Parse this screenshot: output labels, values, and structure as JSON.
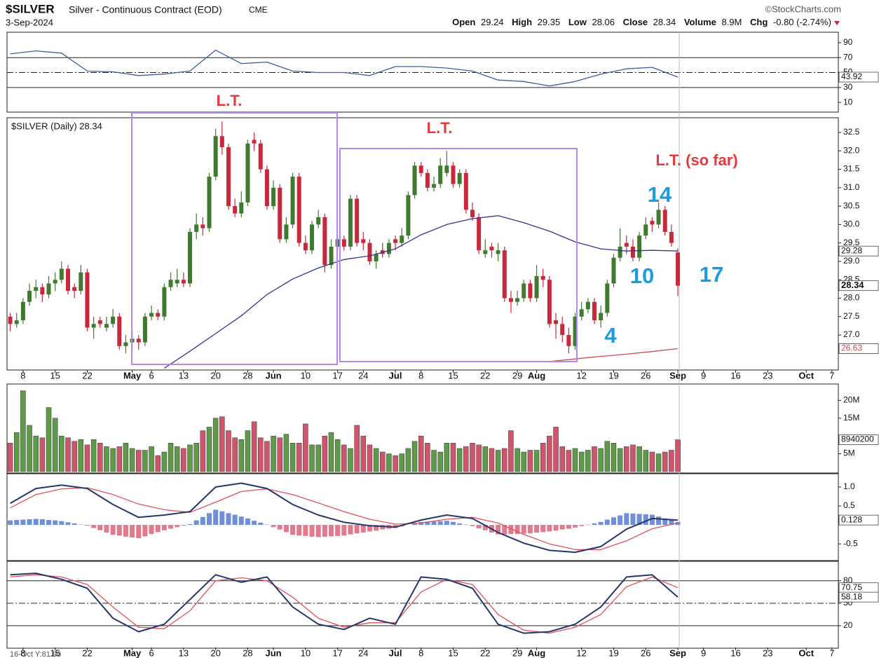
{
  "chart_data": {
    "type": "candlestick",
    "symbol": "$SILVER",
    "title": "Silver - Continuous Contract (EOD)",
    "exchange": "CME",
    "source": "©StockCharts.com",
    "date": "3-Sep-2024",
    "quote": {
      "open_label": "Open",
      "open": 29.24,
      "high_label": "High",
      "high": 29.35,
      "low_label": "Low",
      "low": 28.06,
      "close_label": "Close",
      "close": 28.34,
      "volume_label": "Volume",
      "volume": "8.9M",
      "change_label": "Chg",
      "change": "-0.80 (-2.74%)"
    },
    "legend": "$SILVER (Daily) 28.34",
    "cursor_readout": "16-Oct Y:81.90",
    "xlim": [
      -0.5,
      129
    ],
    "xticks": [
      {
        "value": 2,
        "label": "8"
      },
      {
        "value": 7,
        "label": "15"
      },
      {
        "value": 12,
        "label": "22"
      },
      {
        "value": 19,
        "label": "May"
      },
      {
        "value": 22,
        "label": "6"
      },
      {
        "value": 27,
        "label": "13"
      },
      {
        "value": 32,
        "label": "20"
      },
      {
        "value": 37,
        "label": "28"
      },
      {
        "value": 41,
        "label": "Jun"
      },
      {
        "value": 46,
        "label": "10"
      },
      {
        "value": 51,
        "label": "17"
      },
      {
        "value": 55,
        "label": "24"
      },
      {
        "value": 60,
        "label": "Jul"
      },
      {
        "value": 64,
        "label": "8"
      },
      {
        "value": 69,
        "label": "15"
      },
      {
        "value": 74,
        "label": "22"
      },
      {
        "value": 79,
        "label": "29"
      },
      {
        "value": 82,
        "label": "Aug"
      },
      {
        "value": 89,
        "label": "12"
      },
      {
        "value": 94,
        "label": "19"
      },
      {
        "value": 99,
        "label": "26"
      },
      {
        "value": 104,
        "label": "Sep"
      },
      {
        "value": 108,
        "label": "9"
      },
      {
        "value": 113,
        "label": "16"
      },
      {
        "value": 118,
        "label": "23"
      },
      {
        "value": 124,
        "label": "Oct"
      },
      {
        "value": 128,
        "label": "7"
      }
    ],
    "up_color": "#3f7a2e",
    "down_color": "#c8283c",
    "ohlc": [
      [
        27.5,
        27.6,
        27.1,
        27.3
      ],
      [
        27.3,
        27.6,
        27.2,
        27.4
      ],
      [
        27.4,
        28.0,
        27.3,
        27.9
      ],
      [
        27.9,
        28.4,
        27.8,
        28.2
      ],
      [
        28.2,
        28.5,
        28.0,
        28.3
      ],
      [
        28.3,
        28.4,
        27.9,
        28.1
      ],
      [
        28.1,
        28.6,
        28.0,
        28.4
      ],
      [
        28.4,
        28.7,
        28.2,
        28.5
      ],
      [
        28.5,
        29.0,
        28.4,
        28.8
      ],
      [
        28.8,
        28.9,
        28.1,
        28.2
      ],
      [
        28.3,
        28.4,
        28.0,
        28.2
      ],
      [
        28.2,
        28.9,
        28.1,
        28.7
      ],
      [
        28.7,
        28.8,
        27.1,
        27.2
      ],
      [
        27.2,
        27.5,
        26.9,
        27.3
      ],
      [
        27.4,
        27.5,
        27.2,
        27.3
      ],
      [
        27.2,
        27.5,
        27.1,
        27.3
      ],
      [
        27.3,
        27.7,
        27.2,
        27.5
      ],
      [
        27.5,
        27.6,
        26.6,
        26.7
      ],
      [
        26.7,
        27.0,
        26.5,
        26.8
      ],
      [
        26.8,
        27.1,
        26.6,
        26.9
      ],
      [
        26.9,
        27.0,
        26.6,
        26.8
      ],
      [
        26.8,
        27.6,
        26.7,
        27.5
      ],
      [
        27.5,
        27.8,
        27.4,
        27.6
      ],
      [
        27.6,
        27.7,
        27.4,
        27.5
      ],
      [
        27.5,
        28.4,
        27.4,
        28.3
      ],
      [
        28.3,
        28.7,
        28.2,
        28.5
      ],
      [
        28.4,
        28.8,
        28.3,
        28.5
      ],
      [
        28.5,
        28.7,
        28.3,
        28.4
      ],
      [
        28.4,
        29.9,
        28.3,
        29.8
      ],
      [
        29.8,
        30.3,
        29.6,
        30.0
      ],
      [
        30.0,
        30.2,
        29.7,
        29.9
      ],
      [
        29.9,
        31.4,
        29.8,
        31.3
      ],
      [
        31.3,
        32.6,
        31.2,
        32.4
      ],
      [
        32.4,
        32.8,
        31.9,
        32.1
      ],
      [
        32.1,
        32.2,
        30.4,
        30.5
      ],
      [
        30.5,
        30.7,
        30.2,
        30.3
      ],
      [
        30.3,
        30.9,
        30.2,
        30.6
      ],
      [
        30.6,
        32.3,
        30.5,
        32.2
      ],
      [
        32.3,
        32.5,
        32.0,
        32.2
      ],
      [
        32.2,
        32.3,
        31.4,
        31.5
      ],
      [
        31.5,
        31.6,
        30.4,
        30.5
      ],
      [
        30.5,
        31.2,
        30.4,
        31.0
      ],
      [
        31.0,
        31.1,
        29.5,
        29.6
      ],
      [
        29.6,
        30.2,
        29.5,
        30.0
      ],
      [
        30.0,
        31.4,
        29.9,
        31.3
      ],
      [
        31.3,
        31.4,
        29.4,
        29.5
      ],
      [
        29.5,
        29.7,
        29.2,
        29.3
      ],
      [
        29.3,
        30.1,
        29.2,
        30.0
      ],
      [
        30.0,
        30.4,
        29.9,
        30.2
      ],
      [
        30.2,
        30.3,
        28.7,
        28.9
      ],
      [
        28.9,
        29.6,
        28.8,
        29.4
      ],
      [
        29.4,
        29.7,
        29.3,
        29.6
      ],
      [
        29.6,
        29.7,
        29.3,
        29.4
      ],
      [
        29.4,
        30.8,
        29.3,
        30.7
      ],
      [
        30.7,
        30.8,
        29.4,
        29.5
      ],
      [
        29.6,
        29.8,
        29.3,
        29.5
      ],
      [
        29.5,
        29.6,
        28.9,
        29.0
      ],
      [
        29.0,
        29.3,
        28.8,
        29.2
      ],
      [
        29.3,
        29.5,
        29.1,
        29.2
      ],
      [
        29.2,
        29.6,
        29.1,
        29.5
      ],
      [
        29.6,
        29.7,
        29.3,
        29.5
      ],
      [
        29.5,
        29.9,
        29.4,
        29.7
      ],
      [
        29.7,
        30.9,
        29.6,
        30.8
      ],
      [
        30.8,
        31.7,
        30.7,
        31.6
      ],
      [
        31.6,
        31.7,
        31.3,
        31.4
      ],
      [
        31.4,
        31.5,
        30.9,
        31.0
      ],
      [
        31.0,
        31.3,
        30.9,
        31.1
      ],
      [
        31.1,
        31.8,
        31.0,
        31.6
      ],
      [
        31.4,
        32.0,
        31.3,
        31.6
      ],
      [
        31.6,
        31.7,
        31.0,
        31.1
      ],
      [
        31.1,
        31.5,
        31.0,
        31.4
      ],
      [
        31.4,
        31.5,
        30.3,
        30.4
      ],
      [
        30.4,
        30.6,
        30.1,
        30.2
      ],
      [
        30.2,
        30.3,
        29.2,
        29.3
      ],
      [
        29.2,
        29.6,
        29.1,
        29.3
      ],
      [
        29.4,
        29.5,
        29.1,
        29.3
      ],
      [
        29.2,
        29.5,
        29.0,
        29.3
      ],
      [
        29.3,
        29.4,
        27.9,
        28.0
      ],
      [
        28.0,
        28.2,
        27.6,
        27.9
      ],
      [
        27.9,
        28.2,
        27.8,
        28.0
      ],
      [
        28.0,
        28.5,
        27.9,
        28.4
      ],
      [
        28.4,
        28.5,
        27.9,
        28.0
      ],
      [
        28.0,
        28.9,
        27.9,
        28.6
      ],
      [
        28.6,
        28.8,
        28.3,
        28.5
      ],
      [
        28.5,
        28.6,
        27.2,
        27.3
      ],
      [
        27.4,
        27.6,
        26.9,
        27.3
      ],
      [
        27.3,
        27.5,
        26.8,
        27.0
      ],
      [
        27.0,
        27.2,
        26.5,
        26.7
      ],
      [
        26.7,
        27.6,
        26.6,
        27.5
      ],
      [
        27.5,
        27.9,
        27.4,
        27.7
      ],
      [
        27.7,
        28.0,
        27.6,
        27.9
      ],
      [
        27.9,
        28.0,
        27.3,
        27.4
      ],
      [
        27.4,
        27.8,
        27.2,
        27.6
      ],
      [
        27.6,
        28.5,
        27.5,
        28.4
      ],
      [
        28.4,
        29.2,
        28.3,
        29.1
      ],
      [
        29.1,
        29.9,
        29.0,
        29.4
      ],
      [
        29.5,
        29.7,
        29.2,
        29.4
      ],
      [
        29.4,
        29.6,
        29.0,
        29.1
      ],
      [
        29.1,
        29.8,
        29.0,
        29.7
      ],
      [
        29.7,
        30.2,
        29.6,
        30.0
      ],
      [
        30.1,
        30.2,
        29.8,
        30.0
      ],
      [
        30.0,
        30.6,
        29.9,
        30.4
      ],
      [
        30.4,
        30.5,
        29.7,
        29.8
      ],
      [
        29.8,
        30.0,
        29.4,
        29.5
      ],
      [
        29.24,
        29.35,
        28.06,
        28.34
      ]
    ],
    "ylim": [
      26.05,
      32.9
    ],
    "yticks": [
      {
        "value": 27,
        "label": "27.0"
      },
      27.5,
      {
        "value": 28,
        "label": "28.0"
      },
      28.5,
      {
        "value": 29,
        "label": "29.0"
      },
      29.5,
      {
        "value": 30,
        "label": "30.0"
      },
      30.5,
      {
        "value": 31,
        "label": "31.0"
      },
      31.5,
      {
        "value": 32,
        "label": "32.0"
      },
      32.5
    ],
    "indicator_x": [
      0,
      4,
      8,
      12,
      16,
      20,
      24,
      28,
      32,
      36,
      40,
      44,
      48,
      52,
      56,
      60,
      64,
      68,
      72,
      76,
      80,
      84,
      88,
      92,
      96,
      100,
      104
    ],
    "overlays": [
      {
        "color": "#34348f",
        "x": [
          0,
          4,
          8,
          12,
          16,
          20,
          24,
          28,
          32,
          36,
          40,
          44,
          48,
          52,
          56,
          60,
          64,
          68,
          72,
          76,
          80,
          84,
          88,
          92,
          96,
          100,
          104
        ],
        "values": [
          null,
          null,
          null,
          null,
          null,
          null,
          26.1,
          26.56,
          27.04,
          27.52,
          28.1,
          28.52,
          28.82,
          29.05,
          29.15,
          29.34,
          29.72,
          30.0,
          30.16,
          30.24,
          30.05,
          29.82,
          29.53,
          29.34,
          29.28,
          29.3,
          29.28
        ]
      },
      {
        "color": "#cc4a55",
        "x": [
          84,
          88,
          92,
          96,
          100,
          104
        ],
        "values": [
          26.28,
          26.35,
          26.42,
          26.48,
          26.55,
          26.63
        ]
      }
    ],
    "annotations": [
      {
        "text": "L.T.",
        "color": "#e8393c"
      },
      {
        "text": "L.T.",
        "color": "#e8393c"
      },
      {
        "text": "L.T. (so far)",
        "color": "#e8393c"
      },
      {
        "text": "14",
        "color": "#1b9be0"
      },
      {
        "text": "10",
        "color": "#1b9be0"
      },
      {
        "text": "4",
        "color": "#1b9be0"
      },
      {
        "text": "17",
        "color": "#1b9be0"
      }
    ],
    "volume": {
      "values": [
        8,
        11,
        22.7,
        13,
        10,
        9.5,
        18,
        15,
        10,
        9.5,
        8.5,
        9,
        7.5,
        9,
        8,
        7,
        6.5,
        7,
        8,
        6.5,
        6,
        6,
        7,
        4.5,
        5.5,
        8,
        7,
        6.5,
        7.5,
        8,
        11.5,
        12.5,
        15,
        15.4,
        11.5,
        9.5,
        9,
        11.5,
        14,
        9.5,
        8.5,
        10,
        9.5,
        10.5,
        8,
        8,
        13.4,
        7.5,
        7.5,
        10,
        11,
        9,
        7.5,
        6.5,
        13,
        10,
        7.5,
        6.5,
        5.5,
        5,
        4.5,
        5,
        6.5,
        8.5,
        10,
        8,
        6,
        5.5,
        8,
        8,
        6.5,
        7,
        8,
        7.5,
        7,
        6.5,
        6,
        6.5,
        11.5,
        6.5,
        5.5,
        6,
        6,
        8,
        10,
        12.5,
        7,
        6,
        6.5,
        5.5,
        6,
        7,
        6.5,
        8.5,
        8,
        6.5,
        7,
        7.5,
        7,
        6,
        5.5,
        5,
        5.5,
        6,
        8.94
      ],
      "last_value_label": "8940200",
      "up_color": "#5f9a48",
      "down_color": "#d0556c",
      "ylim": [
        -0.4,
        24.6
      ],
      "yticks": [
        {
          "value": 5,
          "label": "5M"
        },
        {
          "value": 15,
          "label": "15M"
        },
        {
          "value": 20,
          "label": "20M"
        }
      ]
    },
    "rsi": {
      "color": "#3d5f9e",
      "values": [
        75,
        79,
        76,
        52,
        51,
        46,
        48,
        52,
        80,
        62,
        64,
        52,
        50,
        50,
        46,
        58,
        58,
        56,
        52,
        40,
        38,
        32,
        38,
        48,
        55,
        57,
        43.92
      ],
      "ylim": [
        -3,
        104
      ],
      "yticks": [
        10,
        30,
        50,
        70,
        90
      ],
      "levels": [
        {
          "value": 70,
          "style": "solid"
        },
        {
          "value": 50,
          "style": "dashdot"
        },
        {
          "value": 30,
          "style": "solid"
        }
      ]
    },
    "macd": {
      "macd_color": "#27366b",
      "signal_color": "#e0505e",
      "hist_up_color": "#6f8fd8",
      "hist_down_color": "#e07a8c",
      "macd": [
        0.57,
        0.96,
        1.05,
        0.96,
        0.54,
        0.2,
        0.26,
        0.35,
        1.0,
        1.1,
        0.96,
        0.54,
        0.26,
        0.07,
        -0.02,
        -0.06,
        0.13,
        0.26,
        0.17,
        -0.2,
        -0.48,
        -0.67,
        -0.72,
        -0.57,
        -0.11,
        0.17,
        0.128
      ],
      "signal": [
        0.45,
        0.8,
        0.95,
        0.98,
        0.8,
        0.55,
        0.4,
        0.33,
        0.6,
        0.88,
        0.95,
        0.8,
        0.58,
        0.35,
        0.15,
        0.02,
        0.05,
        0.15,
        0.2,
        0.05,
        -0.25,
        -0.5,
        -0.65,
        -0.65,
        -0.42,
        -0.1,
        0.05
      ],
      "histogram": [
        0.12,
        0.13,
        0.14,
        0.15,
        0.16,
        0.15,
        0.13,
        0.12,
        0.1,
        0.07,
        0.04,
        0.01,
        -0.02,
        -0.08,
        -0.14,
        -0.2,
        -0.26,
        -0.28,
        -0.31,
        -0.33,
        -0.35,
        -0.3,
        -0.24,
        -0.19,
        -0.14,
        -0.1,
        -0.06,
        -0.02,
        0.02,
        0.12,
        0.21,
        0.31,
        0.4,
        0.36,
        0.31,
        0.27,
        0.22,
        0.17,
        0.11,
        0.06,
        0.01,
        -0.06,
        -0.12,
        -0.19,
        -0.26,
        -0.28,
        -0.29,
        -0.31,
        -0.32,
        -0.31,
        -0.3,
        -0.29,
        -0.28,
        -0.25,
        -0.22,
        -0.2,
        -0.17,
        -0.15,
        -0.12,
        -0.1,
        -0.08,
        -0.04,
        0.0,
        0.04,
        0.08,
        0.09,
        0.09,
        0.1,
        0.11,
        0.08,
        0.04,
        0.01,
        -0.03,
        -0.09,
        -0.14,
        -0.2,
        -0.25,
        -0.25,
        -0.24,
        -0.24,
        -0.23,
        -0.22,
        -0.2,
        -0.19,
        -0.17,
        -0.15,
        -0.12,
        -0.1,
        -0.07,
        -0.03,
        0.01,
        0.04,
        0.08,
        0.14,
        0.2,
        0.25,
        0.31,
        0.3,
        0.29,
        0.28,
        0.27,
        0.22,
        0.17,
        0.13,
        0.08
      ],
      "ylim": [
        -0.94,
        1.35
      ],
      "yticks": [
        -0.5,
        0.5,
        {
          "value": 1,
          "label": "1.0"
        }
      ]
    },
    "stochastic": {
      "k_color": "#27366b",
      "d_color": "#e0505e",
      "k": [
        88,
        90,
        82,
        70,
        30,
        12,
        22,
        55,
        88,
        78,
        85,
        45,
        22,
        15,
        30,
        22,
        85,
        82,
        70,
        22,
        10,
        12,
        22,
        45,
        85,
        88,
        58.18
      ],
      "d": [
        85,
        88,
        85,
        75,
        45,
        18,
        16,
        40,
        80,
        84,
        80,
        58,
        30,
        18,
        24,
        24,
        65,
        82,
        75,
        35,
        14,
        10,
        18,
        35,
        72,
        85,
        70.75
      ],
      "ylim": [
        -10,
        106
      ],
      "yticks": [
        20,
        50,
        80
      ],
      "levels": [
        {
          "value": 80,
          "style": "solid"
        },
        {
          "value": 50,
          "style": "dashdot"
        },
        {
          "value": 20,
          "style": "solid"
        }
      ]
    }
  }
}
